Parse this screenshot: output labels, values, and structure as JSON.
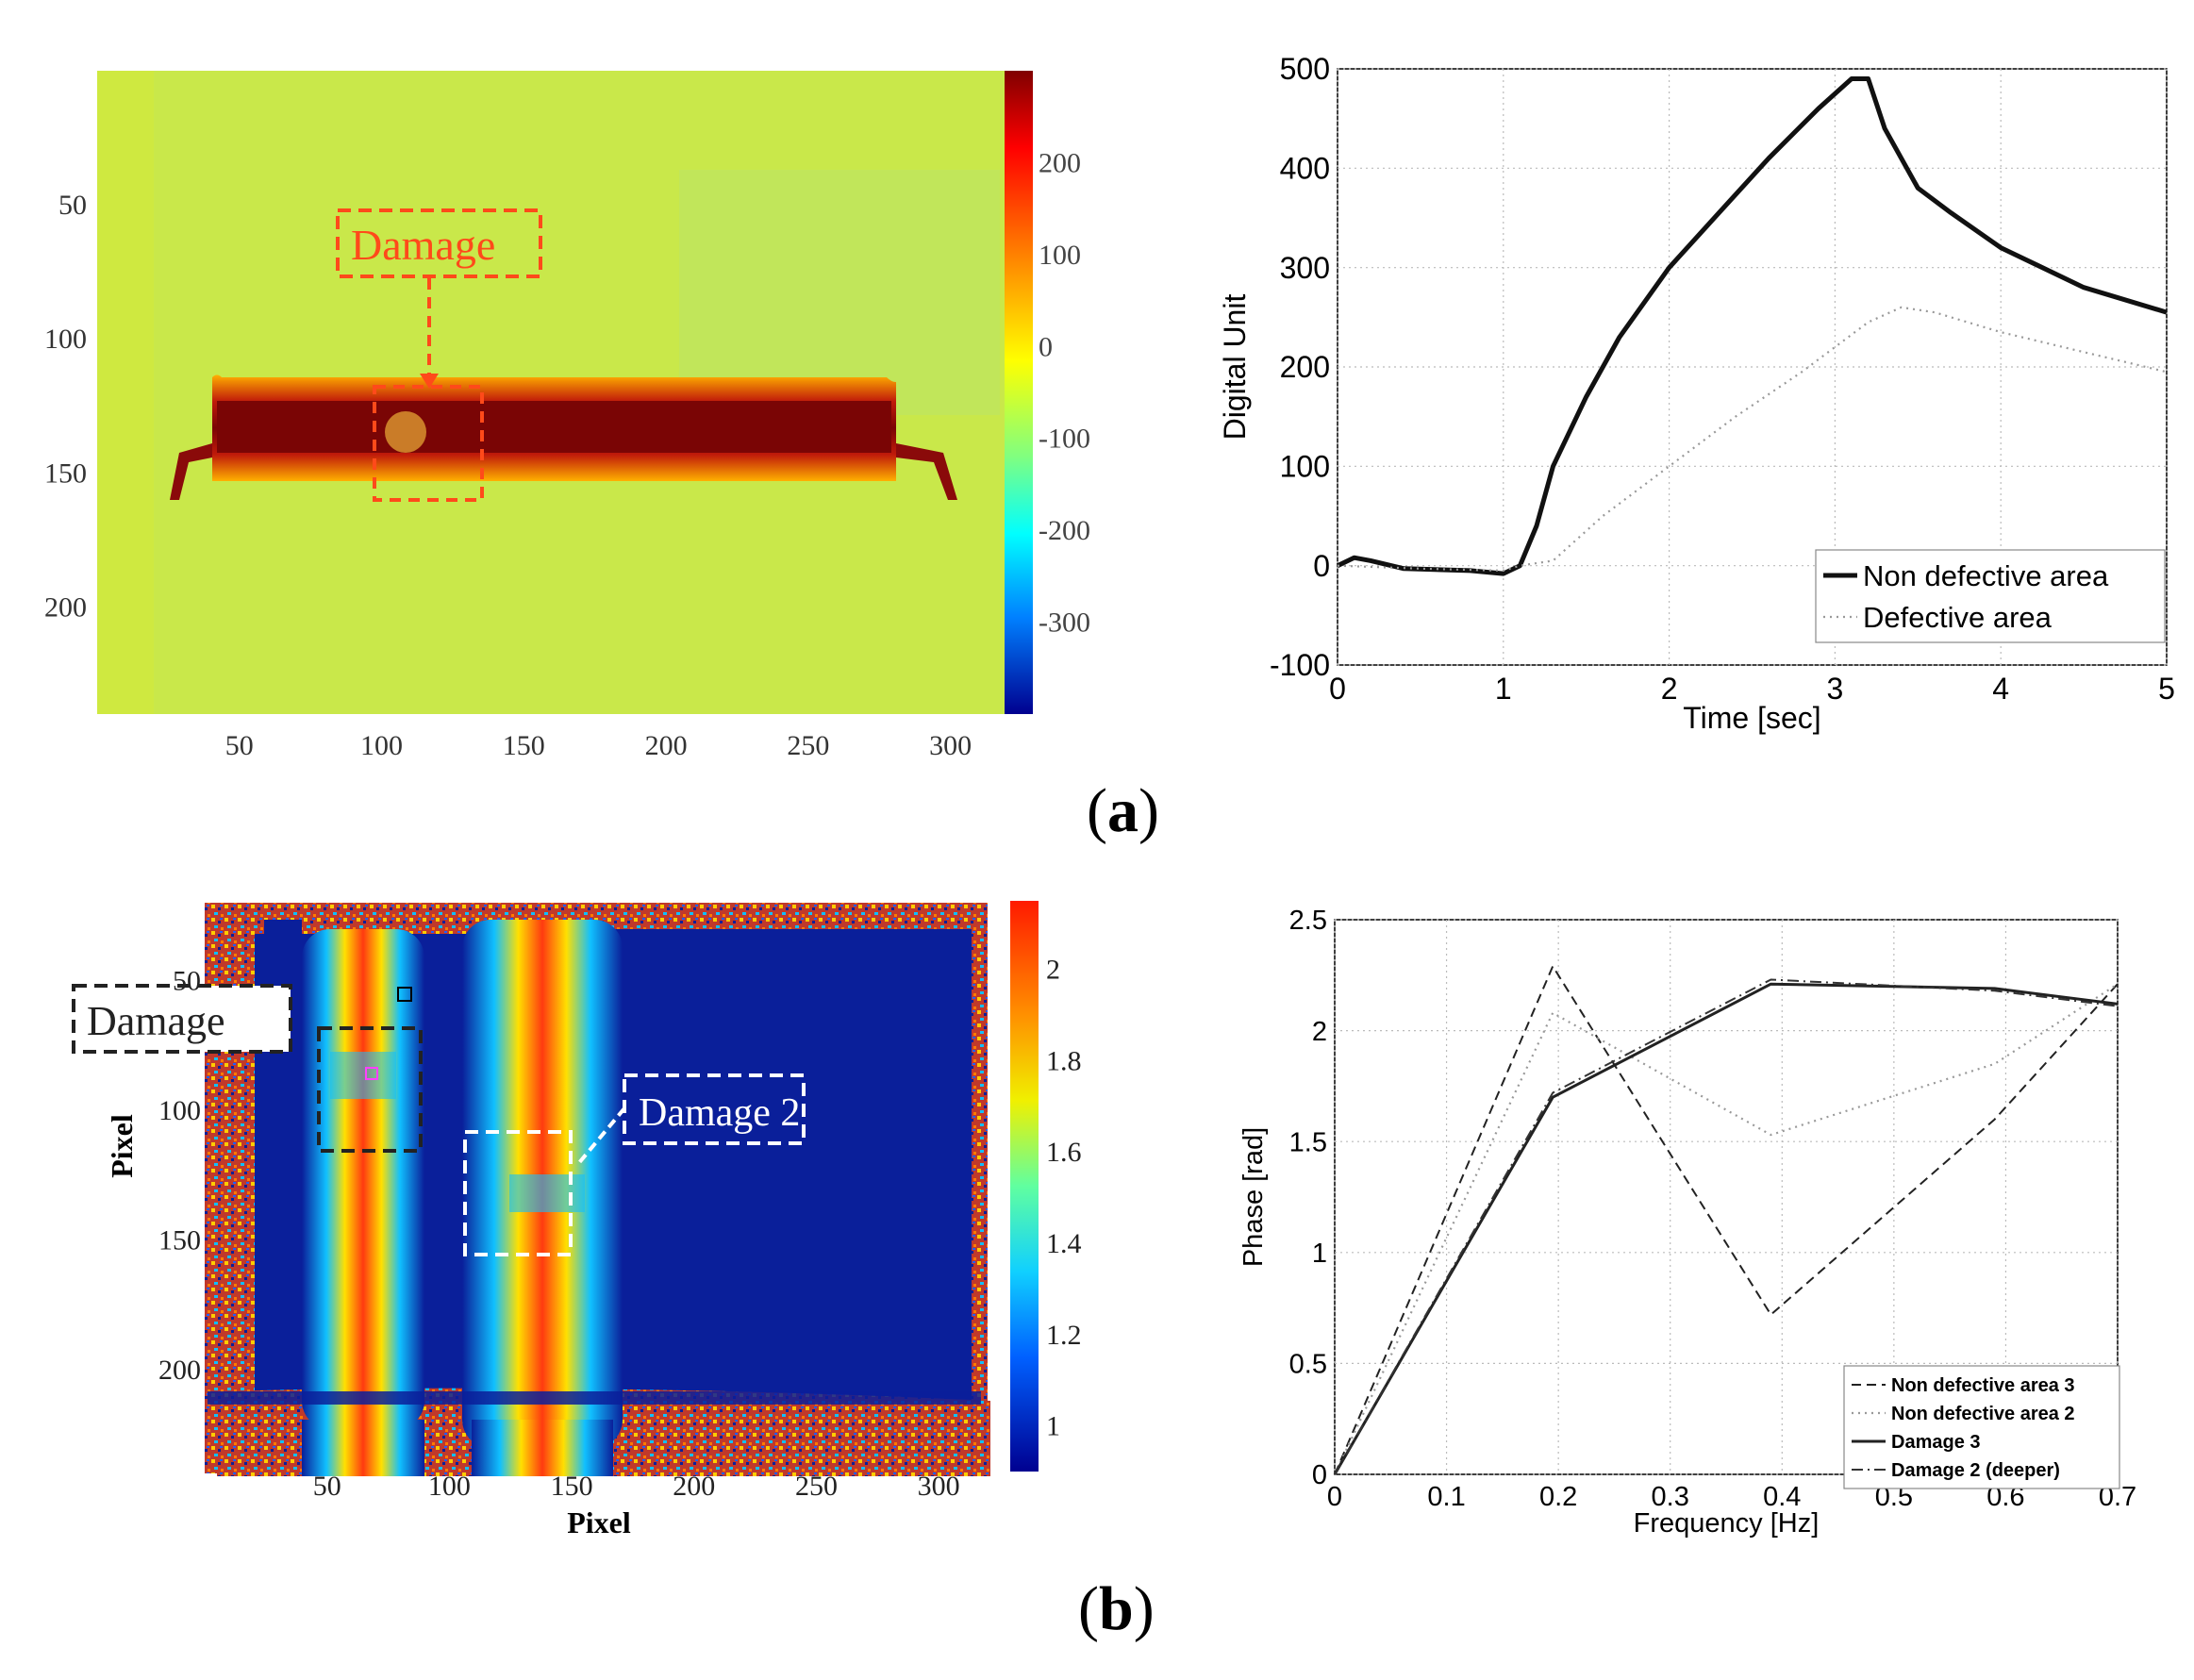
{
  "captions": {
    "a": "a",
    "b": "b"
  },
  "heatmap_a": {
    "x_ticks": [
      "50",
      "100",
      "150",
      "200",
      "250",
      "300"
    ],
    "y_ticks": [
      "50",
      "100",
      "150",
      "200"
    ],
    "colorbar_ticks": [
      "200",
      "100",
      "0",
      "-100",
      "-200",
      "-300"
    ],
    "annotation": "Damage",
    "colors": {
      "background": "#c9e84a",
      "band": "#8a0a0a",
      "annotation": "#ff4a1a"
    }
  },
  "heatmap_b": {
    "x_ticks": [
      "50",
      "100",
      "150",
      "200",
      "250",
      "300"
    ],
    "y_ticks": [
      "50",
      "100",
      "150",
      "200"
    ],
    "xlabel": "Pixel",
    "ylabel": "Pixel",
    "colorbar_ticks": [
      "2",
      "1.8",
      "1.6",
      "1.4",
      "1.2",
      "1"
    ],
    "annotation_1": "Damage",
    "annotation_2": "Damage 2",
    "colors": {
      "background": "#0a1f9a",
      "stripe": "#ff3a10",
      "box1": "#222222",
      "box2": "#ffffff"
    }
  },
  "chart_data": [
    {
      "type": "line",
      "title": "",
      "xlabel": "Time [sec]",
      "ylabel": "Digital Unit",
      "xlim": [
        0,
        5
      ],
      "ylim": [
        -100,
        500
      ],
      "x_ticks": [
        "0",
        "1",
        "2",
        "3",
        "4",
        "5"
      ],
      "y_ticks": [
        "-100",
        "0",
        "100",
        "200",
        "300",
        "400",
        "500"
      ],
      "grid": true,
      "legend": "bottom-right",
      "series": [
        {
          "name": "Non defective area",
          "style": "solid-thick",
          "x": [
            0,
            0.1,
            0.2,
            0.4,
            0.8,
            1.0,
            1.1,
            1.2,
            1.3,
            1.5,
            1.7,
            2.0,
            2.3,
            2.6,
            2.9,
            3.1,
            3.2,
            3.3,
            3.5,
            3.7,
            4.0,
            4.5,
            5.0
          ],
          "y": [
            0,
            8,
            5,
            -3,
            -5,
            -8,
            0,
            40,
            100,
            170,
            230,
            300,
            355,
            410,
            460,
            490,
            490,
            440,
            380,
            355,
            320,
            280,
            255
          ]
        },
        {
          "name": "Defective area",
          "style": "dotted",
          "x": [
            0,
            0.5,
            1.0,
            1.1,
            1.3,
            1.6,
            2.0,
            2.4,
            2.8,
            3.0,
            3.2,
            3.4,
            3.6,
            4.0,
            4.5,
            5.0
          ],
          "y": [
            0,
            -3,
            -5,
            0,
            5,
            50,
            100,
            150,
            195,
            220,
            245,
            260,
            255,
            235,
            215,
            195
          ]
        }
      ]
    },
    {
      "type": "line",
      "title": "",
      "xlabel": "Frequency [Hz]",
      "ylabel": "Phase [rad]",
      "xlim": [
        0,
        0.7
      ],
      "ylim": [
        0,
        2.5
      ],
      "x_ticks": [
        "0",
        "0.1",
        "0.2",
        "0.3",
        "0.4",
        "0.5",
        "0.6",
        "0.7"
      ],
      "y_ticks": [
        "0",
        "0.5",
        "1",
        "1.5",
        "2",
        "2.5"
      ],
      "grid": true,
      "legend": "bottom-right",
      "series": [
        {
          "name": "Non defective area 3",
          "style": "dashed",
          "x": [
            0,
            0.195,
            0.39,
            0.59,
            0.7
          ],
          "y": [
            0,
            2.29,
            0.72,
            1.6,
            2.21
          ]
        },
        {
          "name": "Non defective area 2",
          "style": "dotted",
          "x": [
            0,
            0.195,
            0.39,
            0.59,
            0.7
          ],
          "y": [
            0,
            2.08,
            1.53,
            1.85,
            2.21
          ]
        },
        {
          "name": "Damage 3",
          "style": "solid",
          "x": [
            0,
            0.195,
            0.39,
            0.59,
            0.7
          ],
          "y": [
            0,
            1.7,
            2.21,
            2.19,
            2.12
          ]
        },
        {
          "name": "Damage 2 (deeper)",
          "style": "dashdot",
          "x": [
            0,
            0.195,
            0.39,
            0.59,
            0.7
          ],
          "y": [
            0,
            1.72,
            2.23,
            2.18,
            2.11
          ]
        }
      ]
    }
  ]
}
